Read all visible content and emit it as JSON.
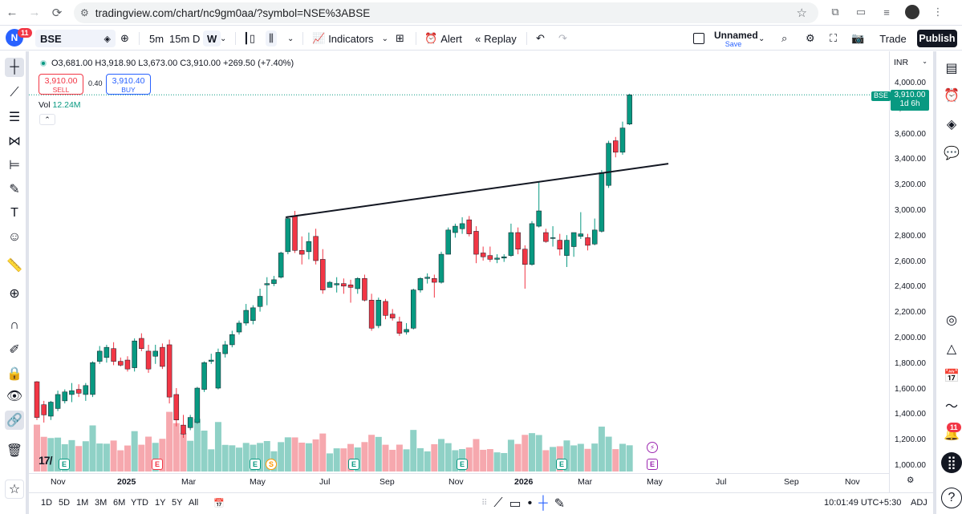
{
  "browser": {
    "url": "tradingview.com/chart/nc9gm0aa/?symbol=NSE%3ABSE"
  },
  "toolbar": {
    "logo_letter": "N",
    "notification_count": "11",
    "symbol": "BSE",
    "intervals": [
      "5m",
      "15m",
      "D",
      "W"
    ],
    "indicators_label": "Indicators",
    "alert_label": "Alert",
    "replay_label": "Replay",
    "layout_name": "Unnamed",
    "save_label": "Save",
    "trade_label": "Trade",
    "publish_label": "Publish"
  },
  "legend": {
    "ohlc": "O3,681.00 H3,918.90 L3,673.00 C3,910.00 +269.50 (+7.40%)",
    "sell_price": "3,910.00",
    "sell_label": "SELL",
    "spread": "0.40",
    "buy_price": "3,910.40",
    "buy_label": "BUY",
    "vol_label": "Vol",
    "vol_value": "12.24M"
  },
  "price_axis": {
    "currency": "INR",
    "labels": [
      "4,000.00",
      "3,800.00",
      "3,600.00",
      "3,400.00",
      "3,200.00",
      "3,000.00",
      "2,800.00",
      "2,600.00",
      "2,400.00",
      "2,200.00",
      "2,000.00",
      "1,800.00",
      "1,600.00",
      "1,400.00",
      "1,200.00",
      "1,000.00"
    ],
    "current_symbol": "BSE",
    "current_price": "3,910.00",
    "countdown": "1d 6h"
  },
  "time_axis": {
    "labels": [
      "Nov",
      "2025",
      "Mar",
      "May",
      "Jul",
      "Sep",
      "Nov",
      "2026",
      "Mar",
      "May",
      "Jul",
      "Sep",
      "Nov"
    ]
  },
  "bottom": {
    "ranges": [
      "1D",
      "5D",
      "1M",
      "3M",
      "6M",
      "YTD",
      "1Y",
      "5Y",
      "All"
    ],
    "clock": "10:01:49 UTC+5:30",
    "adj": "ADJ"
  },
  "colors": {
    "up": "#089981",
    "down": "#f23645",
    "vol_up": "#8fd1c6",
    "vol_down": "#f6a8ae",
    "accent": "#2962ff"
  },
  "chart_data": {
    "type": "candlestick",
    "symbol": "BSE",
    "timeframe": "W",
    "currency": "INR",
    "ylim": [
      1000,
      4000
    ],
    "candles": [
      {
        "o": 1660,
        "h": 1665,
        "l": 1360,
        "c": 1380
      },
      {
        "o": 1480,
        "h": 1510,
        "l": 1340,
        "c": 1400
      },
      {
        "o": 1390,
        "h": 1510,
        "l": 1360,
        "c": 1500
      },
      {
        "o": 1450,
        "h": 1590,
        "l": 1430,
        "c": 1560
      },
      {
        "o": 1510,
        "h": 1600,
        "l": 1490,
        "c": 1580
      },
      {
        "o": 1560,
        "h": 1650,
        "l": 1500,
        "c": 1590
      },
      {
        "o": 1600,
        "h": 1640,
        "l": 1540,
        "c": 1570
      },
      {
        "o": 1560,
        "h": 1650,
        "l": 1510,
        "c": 1630
      },
      {
        "o": 1560,
        "h": 1820,
        "l": 1540,
        "c": 1810
      },
      {
        "o": 1820,
        "h": 1940,
        "l": 1800,
        "c": 1900
      },
      {
        "o": 1850,
        "h": 1950,
        "l": 1810,
        "c": 1930
      },
      {
        "o": 1920,
        "h": 1970,
        "l": 1790,
        "c": 1820
      },
      {
        "o": 1820,
        "h": 1850,
        "l": 1780,
        "c": 1790
      },
      {
        "o": 1830,
        "h": 1860,
        "l": 1740,
        "c": 1760
      },
      {
        "o": 1770,
        "h": 2000,
        "l": 1740,
        "c": 1980
      },
      {
        "o": 2000,
        "h": 2040,
        "l": 1900,
        "c": 1920
      },
      {
        "o": 1900,
        "h": 1950,
        "l": 1730,
        "c": 1760
      },
      {
        "o": 1860,
        "h": 1950,
        "l": 1800,
        "c": 1900
      },
      {
        "o": 1930,
        "h": 1960,
        "l": 1760,
        "c": 1780
      },
      {
        "o": 1950,
        "h": 1990,
        "l": 1490,
        "c": 1540
      },
      {
        "o": 1560,
        "h": 1610,
        "l": 1310,
        "c": 1360
      },
      {
        "o": 1320,
        "h": 1400,
        "l": 1220,
        "c": 1250
      },
      {
        "o": 1300,
        "h": 1400,
        "l": 1280,
        "c": 1380
      },
      {
        "o": 1340,
        "h": 1620,
        "l": 1330,
        "c": 1610
      },
      {
        "o": 1600,
        "h": 1820,
        "l": 1580,
        "c": 1810
      },
      {
        "o": 1820,
        "h": 1880,
        "l": 1800,
        "c": 1830
      },
      {
        "o": 1610,
        "h": 1920,
        "l": 1600,
        "c": 1890
      },
      {
        "o": 1880,
        "h": 1980,
        "l": 1850,
        "c": 1950
      },
      {
        "o": 1950,
        "h": 2060,
        "l": 1930,
        "c": 2030
      },
      {
        "o": 2050,
        "h": 2140,
        "l": 2030,
        "c": 2120
      },
      {
        "o": 2120,
        "h": 2270,
        "l": 2100,
        "c": 2220
      },
      {
        "o": 2140,
        "h": 2260,
        "l": 2110,
        "c": 2240
      },
      {
        "o": 2250,
        "h": 2390,
        "l": 2210,
        "c": 2330
      },
      {
        "o": 2420,
        "h": 2480,
        "l": 2260,
        "c": 2430
      },
      {
        "o": 2430,
        "h": 2490,
        "l": 2410,
        "c": 2460
      },
      {
        "o": 2480,
        "h": 2680,
        "l": 2470,
        "c": 2670
      },
      {
        "o": 2680,
        "h": 2960,
        "l": 2660,
        "c": 2940
      },
      {
        "o": 2960,
        "h": 3000,
        "l": 2670,
        "c": 2690
      },
      {
        "o": 2690,
        "h": 2800,
        "l": 2580,
        "c": 2660
      },
      {
        "o": 2680,
        "h": 2830,
        "l": 2620,
        "c": 2760
      },
      {
        "o": 2800,
        "h": 2860,
        "l": 2580,
        "c": 2610
      },
      {
        "o": 2620,
        "h": 2700,
        "l": 2350,
        "c": 2380
      },
      {
        "o": 2400,
        "h": 2450,
        "l": 2400,
        "c": 2440
      },
      {
        "o": 2420,
        "h": 2480,
        "l": 2360,
        "c": 2430
      },
      {
        "o": 2430,
        "h": 2470,
        "l": 2350,
        "c": 2410
      },
      {
        "o": 2420,
        "h": 2460,
        "l": 2280,
        "c": 2400
      },
      {
        "o": 2390,
        "h": 2480,
        "l": 2350,
        "c": 2470
      },
      {
        "o": 2470,
        "h": 2500,
        "l": 2290,
        "c": 2300
      },
      {
        "o": 2300,
        "h": 2350,
        "l": 2060,
        "c": 2080
      },
      {
        "o": 2100,
        "h": 2320,
        "l": 2080,
        "c": 2300
      },
      {
        "o": 2290,
        "h": 2310,
        "l": 2150,
        "c": 2180
      },
      {
        "o": 2190,
        "h": 2230,
        "l": 2140,
        "c": 2160
      },
      {
        "o": 2130,
        "h": 2170,
        "l": 2020,
        "c": 2040
      },
      {
        "o": 2050,
        "h": 2120,
        "l": 2030,
        "c": 2070
      },
      {
        "o": 2080,
        "h": 2390,
        "l": 2070,
        "c": 2380
      },
      {
        "o": 2380,
        "h": 2480,
        "l": 2360,
        "c": 2470
      },
      {
        "o": 2470,
        "h": 2510,
        "l": 2430,
        "c": 2480
      },
      {
        "o": 2470,
        "h": 2500,
        "l": 2320,
        "c": 2440
      },
      {
        "o": 2440,
        "h": 2680,
        "l": 2430,
        "c": 2660
      },
      {
        "o": 2660,
        "h": 2870,
        "l": 2660,
        "c": 2850
      },
      {
        "o": 2830,
        "h": 2900,
        "l": 2790,
        "c": 2880
      },
      {
        "o": 2860,
        "h": 2950,
        "l": 2820,
        "c": 2900
      },
      {
        "o": 2930,
        "h": 2960,
        "l": 2800,
        "c": 2820
      },
      {
        "o": 2840,
        "h": 2880,
        "l": 2590,
        "c": 2660
      },
      {
        "o": 2670,
        "h": 2720,
        "l": 2610,
        "c": 2640
      },
      {
        "o": 2650,
        "h": 2720,
        "l": 2600,
        "c": 2620
      },
      {
        "o": 2620,
        "h": 2660,
        "l": 2590,
        "c": 2630
      },
      {
        "o": 2630,
        "h": 2660,
        "l": 2600,
        "c": 2640
      },
      {
        "o": 2650,
        "h": 2900,
        "l": 2640,
        "c": 2830
      },
      {
        "o": 2830,
        "h": 2870,
        "l": 2660,
        "c": 2700
      },
      {
        "o": 2700,
        "h": 2730,
        "l": 2390,
        "c": 2580
      },
      {
        "o": 2580,
        "h": 2920,
        "l": 2570,
        "c": 2900
      },
      {
        "o": 2880,
        "h": 3230,
        "l": 2870,
        "c": 3000
      },
      {
        "o": 2830,
        "h": 2860,
        "l": 2750,
        "c": 2760
      },
      {
        "o": 2790,
        "h": 2880,
        "l": 2720,
        "c": 2790
      },
      {
        "o": 2770,
        "h": 2820,
        "l": 2650,
        "c": 2700
      },
      {
        "o": 2650,
        "h": 2810,
        "l": 2560,
        "c": 2770
      },
      {
        "o": 2720,
        "h": 2820,
        "l": 2640,
        "c": 2830
      },
      {
        "o": 2800,
        "h": 2990,
        "l": 2780,
        "c": 2820
      },
      {
        "o": 2790,
        "h": 2820,
        "l": 2690,
        "c": 2730
      },
      {
        "o": 2740,
        "h": 2940,
        "l": 2730,
        "c": 2850
      },
      {
        "o": 2840,
        "h": 3320,
        "l": 2830,
        "c": 3300
      },
      {
        "o": 3200,
        "h": 3550,
        "l": 3180,
        "c": 3530
      },
      {
        "o": 3550,
        "h": 3580,
        "l": 3420,
        "c": 3460
      },
      {
        "o": 3460,
        "h": 3700,
        "l": 3440,
        "c": 3650
      },
      {
        "o": 3681,
        "h": 3918.9,
        "l": 3673,
        "c": 3910
      }
    ],
    "volume_scale": "relative",
    "trendline": {
      "from_price": 2950,
      "to_price": 3370
    },
    "annotations": [
      "E",
      "S",
      "E",
      "E",
      "E",
      "E"
    ]
  }
}
